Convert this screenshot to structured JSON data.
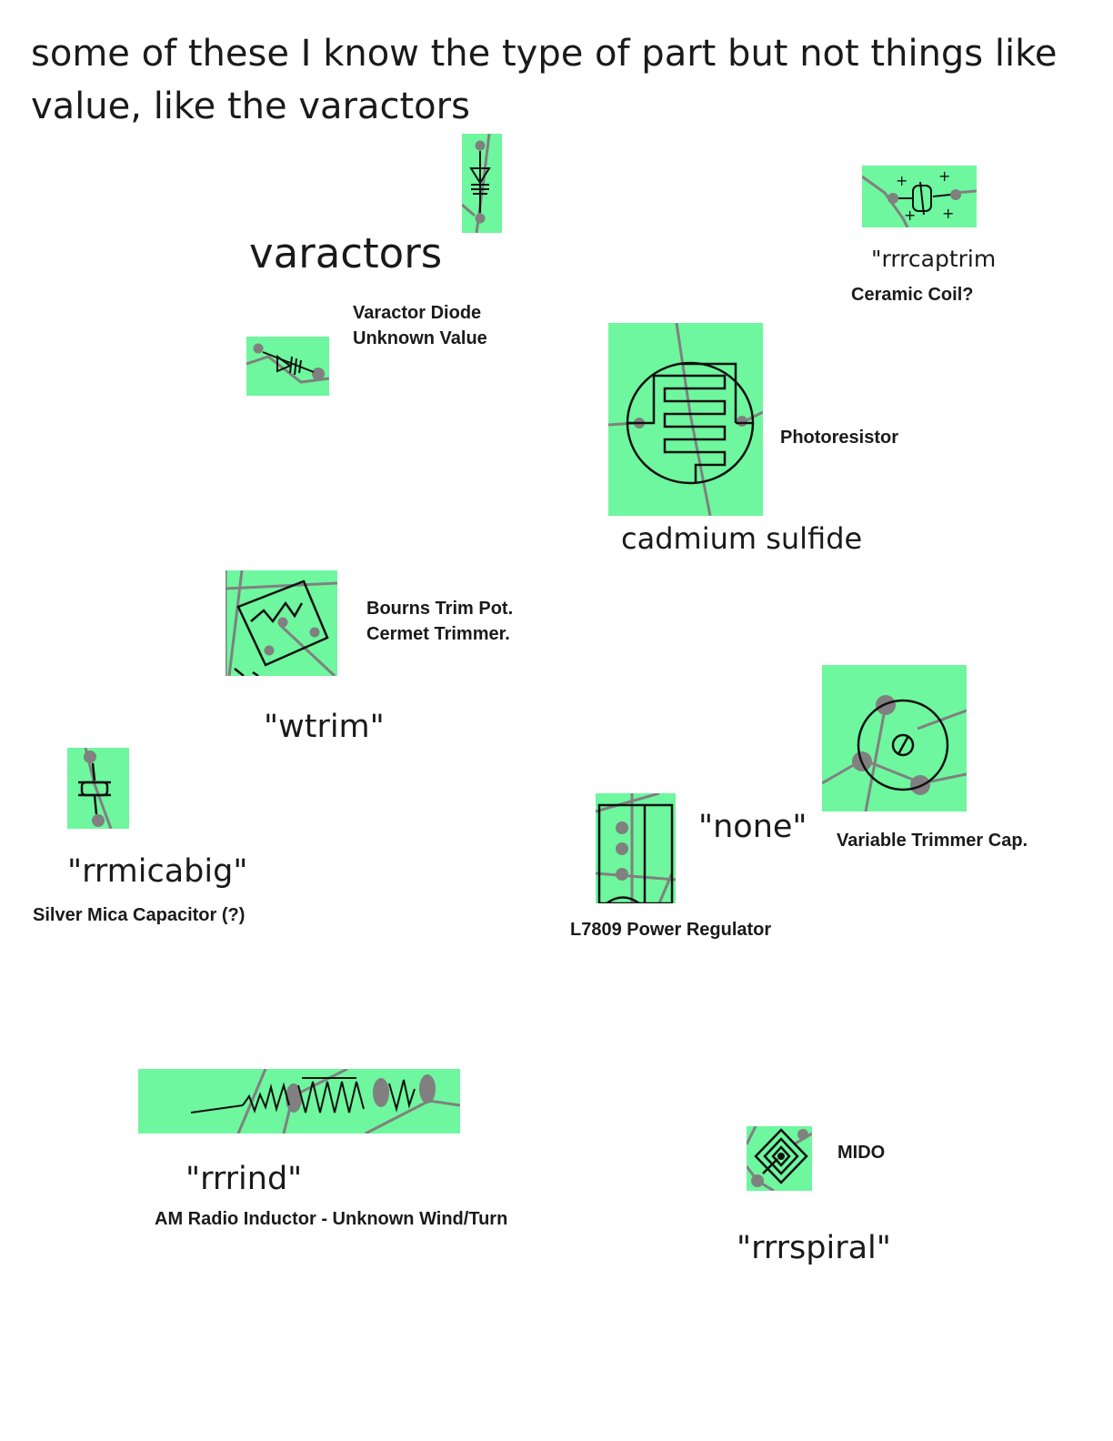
{
  "header": {
    "text": "some of these I know the type of part but not things like value, like the varactors"
  },
  "colors": {
    "tile": "#6ef79e",
    "trace": "#808080",
    "symbol": "#111111"
  },
  "components": [
    {
      "id": "varactors",
      "code": "varactors",
      "name": "Varactor Diode",
      "note": "Unknown Value",
      "icon": "varactor-diode-icon"
    },
    {
      "id": "captrim",
      "code": "\"rrrcaptrim",
      "name": "Ceramic Coil?",
      "icon": "ceramic-trimmer-icon"
    },
    {
      "id": "photoresistor",
      "code": "cadmium sulfide",
      "name": "Photoresistor",
      "icon": "photoresistor-icon"
    },
    {
      "id": "wtrim",
      "code": "\"wtrim\"",
      "name": "Bourns Trim Pot.",
      "note": "Cermet Trimmer.",
      "icon": "trim-pot-icon"
    },
    {
      "id": "rrmicabig",
      "code": "\"rrmicabig\"",
      "name": "Silver Mica Capacitor (?)",
      "icon": "mica-capacitor-icon"
    },
    {
      "id": "none",
      "code": "\"none\"",
      "name": "L7809 Power Regulator",
      "icon": "voltage-regulator-icon"
    },
    {
      "id": "trimcap",
      "name": "Variable Trimmer Cap.",
      "icon": "trimmer-capacitor-icon"
    },
    {
      "id": "rrrind",
      "code": "\"rrrind\"",
      "name": "AM Radio Inductor - Unknown Wind/Turn",
      "icon": "inductor-icon"
    },
    {
      "id": "rrrspiral",
      "code": "\"rrrspiral\"",
      "name": "MIDO",
      "icon": "spiral-inductor-icon"
    }
  ]
}
